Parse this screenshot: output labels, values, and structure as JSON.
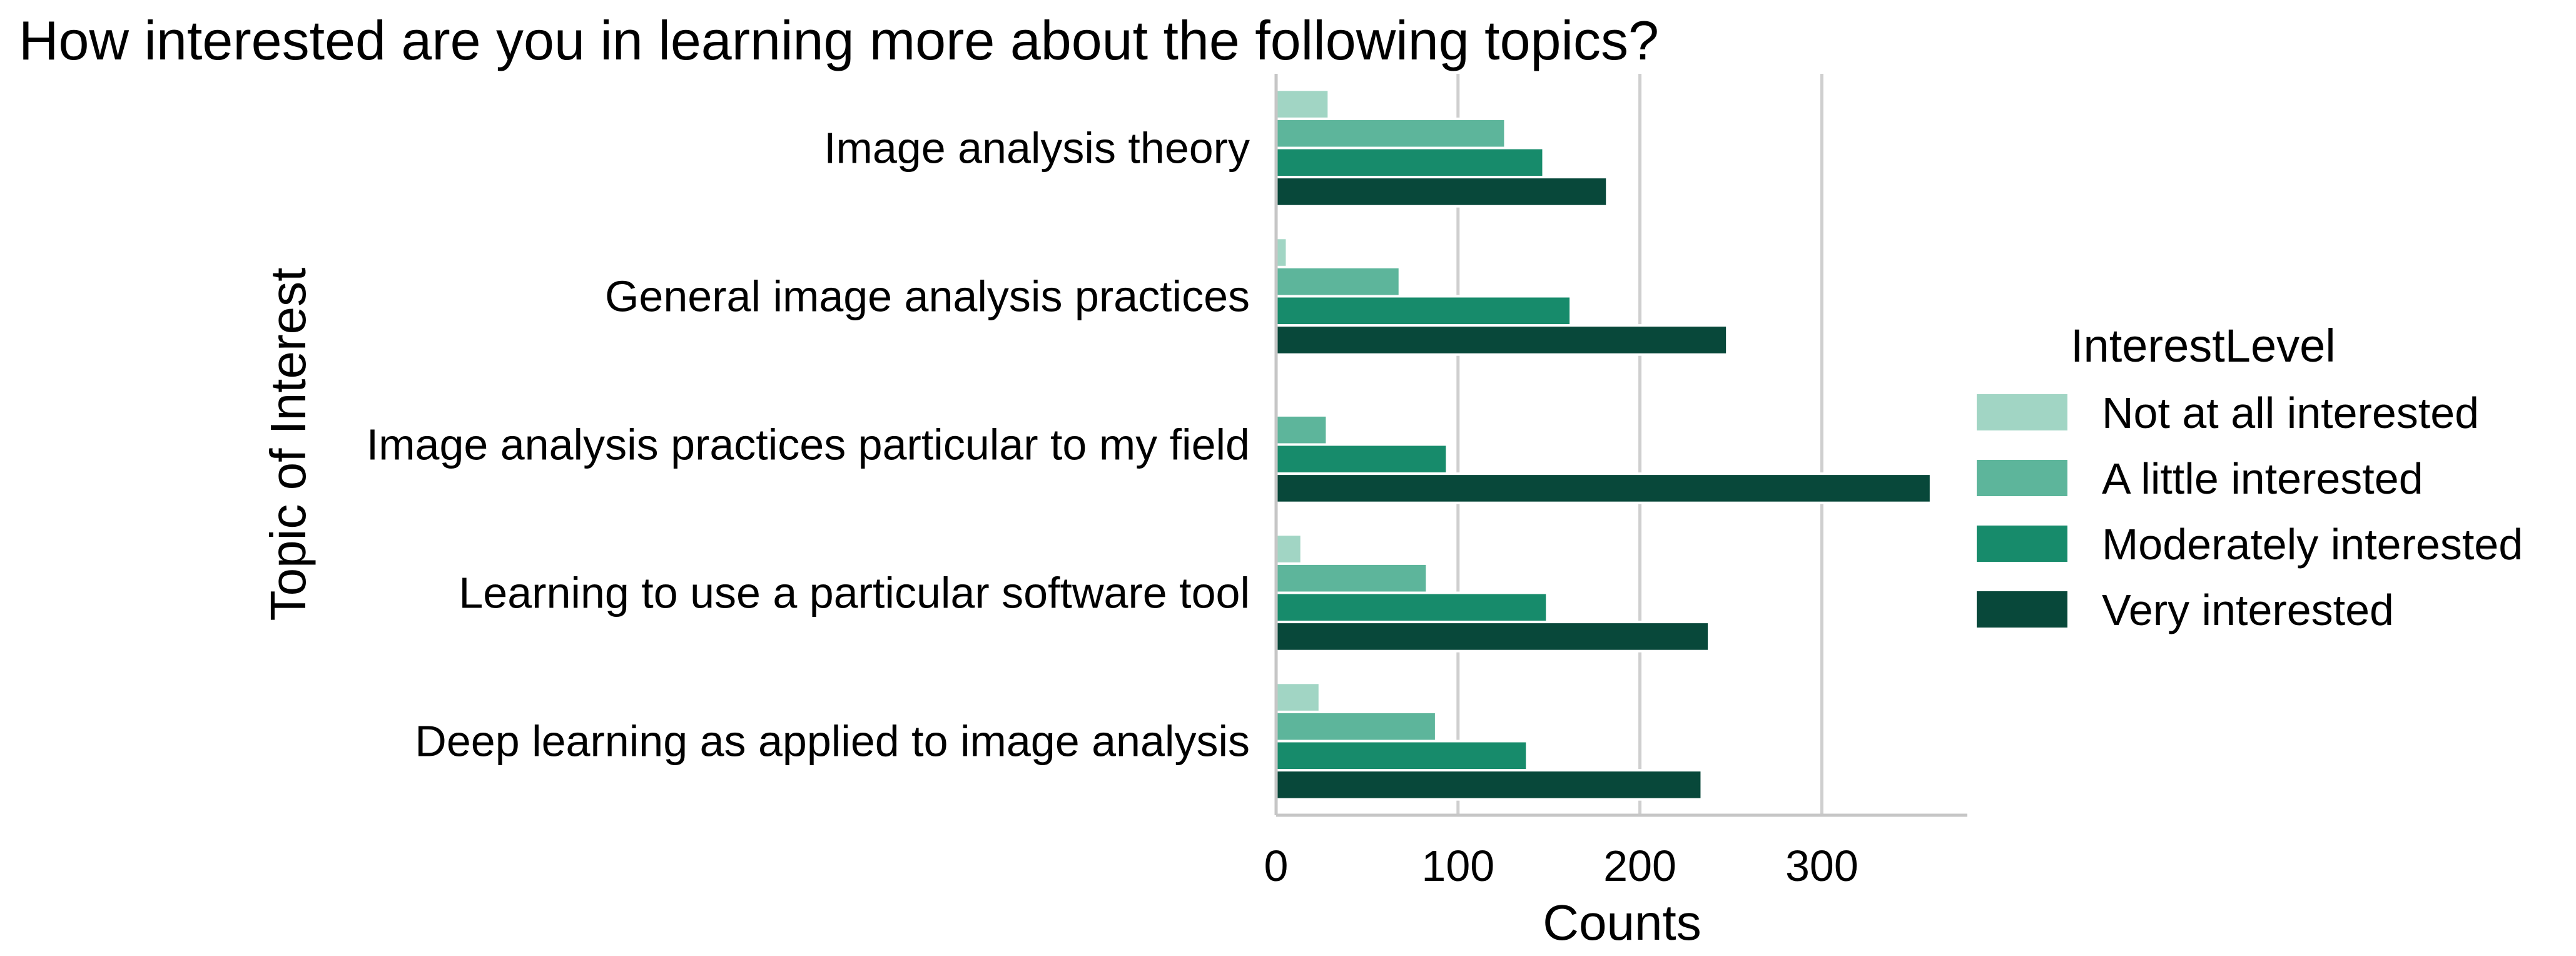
{
  "chart_data": {
    "type": "bar",
    "orientation": "horizontal",
    "title": "How interested are you in learning more about the following topics?",
    "xlabel": "Counts",
    "ylabel": "Topic of Interest",
    "xlim": [
      0,
      380
    ],
    "xticks": [
      0,
      100,
      200,
      300
    ],
    "grid": "vertical",
    "legend": {
      "title": "InterestLevel",
      "placement": "right"
    },
    "categories": [
      "Image analysis theory",
      "General image analysis practices",
      "Image analysis practices particular to my field",
      "Learning to use a particular software tool",
      "Deep learning as applied to image analysis"
    ],
    "series": [
      {
        "name": "Not at all interested",
        "color": "#a1d5c4",
        "values": [
          29,
          6,
          1,
          14,
          24
        ]
      },
      {
        "name": "A little interested",
        "color": "#5db59b",
        "values": [
          126,
          68,
          28,
          83,
          88
        ]
      },
      {
        "name": "Moderately interested",
        "color": "#178b6b",
        "values": [
          147,
          162,
          94,
          149,
          138
        ]
      },
      {
        "name": "Very interested",
        "color": "#08483a",
        "values": [
          182,
          248,
          360,
          238,
          234
        ]
      }
    ]
  }
}
